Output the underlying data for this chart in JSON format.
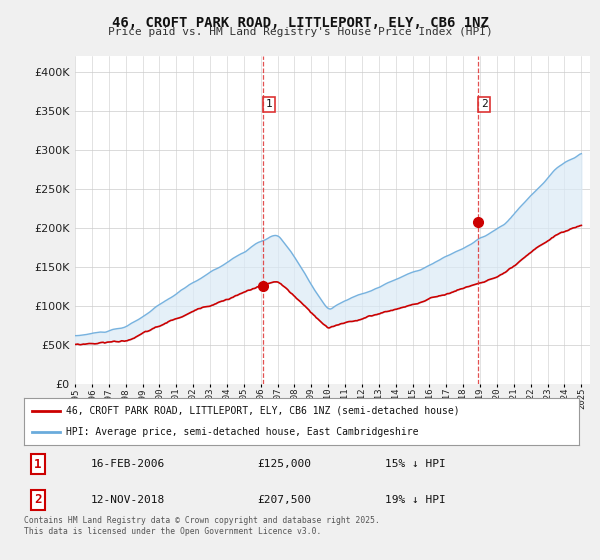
{
  "title": "46, CROFT PARK ROAD, LITTLEPORT, ELY, CB6 1NZ",
  "subtitle": "Price paid vs. HM Land Registry's House Price Index (HPI)",
  "bg_color": "#f0f0f0",
  "plot_bg_color": "#ffffff",
  "grid_color": "#cccccc",
  "red_color": "#cc0000",
  "blue_color": "#6aabdc",
  "fill_color": "#daeaf6",
  "dashed_red": "#dd3333",
  "legend1": "46, CROFT PARK ROAD, LITTLEPORT, ELY, CB6 1NZ (semi-detached house)",
  "legend2": "HPI: Average price, semi-detached house, East Cambridgeshire",
  "transaction1_date": "16-FEB-2006",
  "transaction1_price": "£125,000",
  "transaction1_hpi": "15% ↓ HPI",
  "transaction2_date": "12-NOV-2018",
  "transaction2_price": "£207,500",
  "transaction2_hpi": "19% ↓ HPI",
  "footnote": "Contains HM Land Registry data © Crown copyright and database right 2025.\nThis data is licensed under the Open Government Licence v3.0.",
  "ylim": [
    0,
    420000
  ],
  "yticks": [
    0,
    50000,
    100000,
    150000,
    200000,
    250000,
    300000,
    350000,
    400000
  ],
  "marker1_year": 2006.12,
  "marker1_red_val": 125000,
  "marker2_year": 2018.87,
  "marker2_red_val": 207500
}
